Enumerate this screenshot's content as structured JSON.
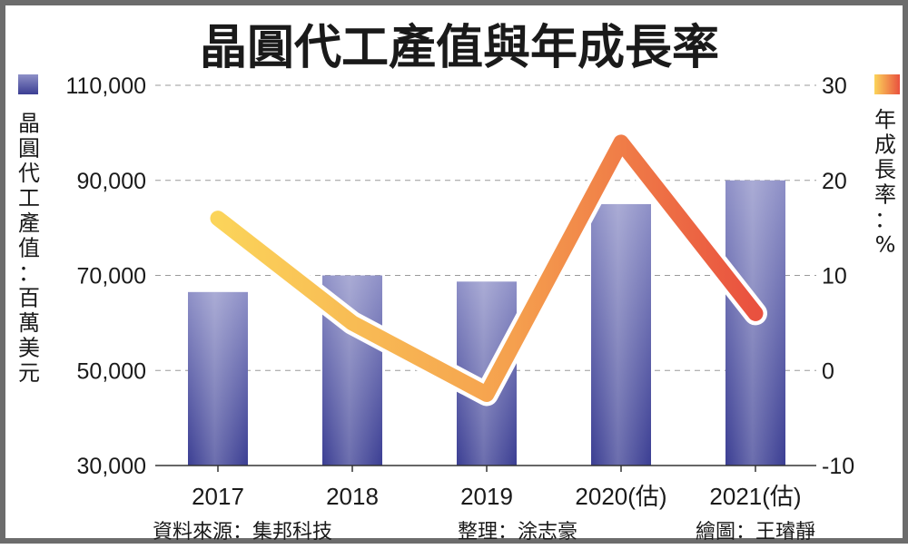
{
  "chart_data": {
    "type": "bar+line",
    "title": "晶圓代工產值與年成長率",
    "categories": [
      "2017",
      "2018",
      "2019",
      "2020(估)",
      "2021(估)"
    ],
    "bar_series": {
      "name": "晶圓代工產值：百萬美元",
      "axis": "left",
      "values": [
        66500,
        70000,
        68700,
        85000,
        90000
      ],
      "color": "#4a4ea0"
    },
    "line_series": {
      "name": "年成長率：%",
      "axis": "right",
      "values": [
        16,
        5,
        -2.5,
        24,
        6
      ],
      "color_start": "#fbd45a",
      "color_end": "#e9513f"
    },
    "y_left": {
      "label": "晶圓代工產值：百萬美元",
      "ticks": [
        "110,000",
        "90,000",
        "70,000",
        "50,000",
        "30,000"
      ],
      "lim": [
        30000,
        110000
      ]
    },
    "y_right": {
      "label": "年成長率：%",
      "ticks": [
        "30",
        "20",
        "10",
        "0",
        "-10"
      ],
      "lim": [
        -10,
        30
      ]
    },
    "grid": true,
    "legend": "top-left and top-right"
  },
  "footer": {
    "source": "資料來源：集邦科技",
    "editor": "整理：涂志豪",
    "artist": "繪圖：王璿靜"
  }
}
